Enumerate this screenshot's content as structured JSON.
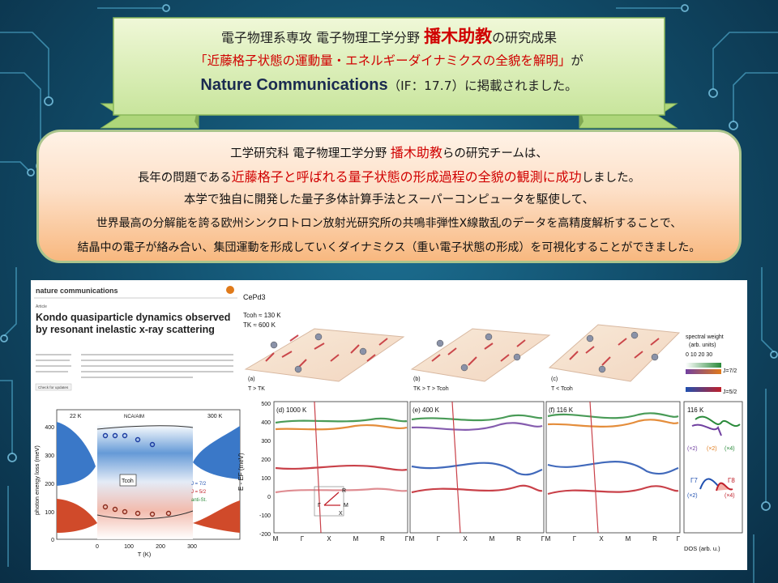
{
  "banner": {
    "line1_pre": "電子物理系専攻  電子物理工学分野  ",
    "line1_name": "播木助教",
    "line1_post": "の研究成果",
    "line2_red": "「近藤格子状態の運動量・エネルギーダイナミクスの全貌を解明」",
    "line2_post": "が",
    "line3_journal": "Nature Communications",
    "line3_post": "（IF：17.7）に掲載されました。"
  },
  "summary": {
    "l1_pre": "工学研究科 電子物理工学分野 ",
    "l1_name": "播木助教",
    "l1_post": "らの研究チームは、",
    "l2_pre": "長年の問題である",
    "l2_red": "近藤格子と呼ばれる量子状態の形成過程の全貌の観測に成功",
    "l2_post": "しました。",
    "l3": "本学で独自に開発した量子多体計算手法とスーパーコンピュータを駆使して、",
    "l4": "世界最高の分解能を誇る欧州シンクロトロン放射光研究所の共鳴非弾性X線散乱のデータを高精度解析することで、",
    "l5": "結晶中の電子が絡み合い、集団運動を形成していくダイナミクス（重い電子状態の形成）を可視化することができました。"
  },
  "paper": {
    "journal": "nature communications",
    "type": "Article",
    "title_l1": "Kondo quasiparticle dynamics observed",
    "title_l2": "by resonant inelastic x-ray scattering",
    "check": "Check for updates"
  },
  "left_plot": {
    "label_22k": "22 K",
    "label_300k": "300 K",
    "legend_top": "NCA/AIM",
    "ylabel": "photon energy loss (meV)",
    "xlabel": "T (K)",
    "yticks": [
      "0",
      "100",
      "200",
      "300",
      "400"
    ],
    "xticks": [
      "0",
      "100",
      "200",
      "300"
    ],
    "tcoh": "Tcoh",
    "legend_j72": "J = 7/2",
    "legend_j52": "J = 5/2",
    "legend_anti": "anti-St."
  },
  "top_panels": {
    "material": "CePd3",
    "tcoh_val": "Tcoh ≈ 130 K",
    "tk_val": "TK ≈ 600 K",
    "a_label": "(a)",
    "a_cond": "T > TK",
    "b_label": "(b)",
    "b_cond": "TK > T > Tcoh",
    "c_label": "(c)",
    "c_cond": "T < Tcoh",
    "sw_title1": "spectral weight",
    "sw_title2": "(arb. units)",
    "sw_ticks": "0 10 20 30",
    "j72": "J=7/2",
    "j52": "J=5/2"
  },
  "band_panels": {
    "ylabel": "E - EF (meV)",
    "yticks": [
      "500",
      "400",
      "300",
      "200",
      "100",
      "0",
      "-100",
      "-200"
    ],
    "d_label": "(d) 1000 K",
    "e_label": "(e) 400 K",
    "f_label": "(f) 116 K",
    "xticks": [
      "M",
      "Γ",
      "X",
      "M",
      "R",
      "Γ"
    ],
    "dos_title": "116 K",
    "dos_xlabel": "DOS (arb. u.)",
    "dos_g7": "Γ7",
    "dos_g8": "Γ8",
    "dos_x2": "(×2)",
    "dos_x4": "(×4)",
    "bz_r": "R",
    "bz_m": "M",
    "bz_x": "X",
    "bz_g": "Γ"
  },
  "colors": {
    "accent_red": "#d00000",
    "j72_green": "#2a8a3a",
    "j52_red": "#c0202a",
    "orange": "#e07a1a",
    "purple": "#7040a0",
    "blue": "#2050b0"
  }
}
